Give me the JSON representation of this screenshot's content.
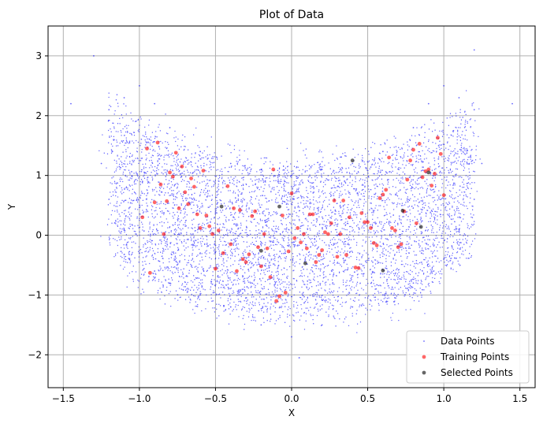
{
  "chart_data": {
    "type": "scatter",
    "title": "Plot of Data",
    "xlabel": "X",
    "ylabel": "Y",
    "xlim": [
      -1.6,
      1.6
    ],
    "ylim": [
      -2.55,
      3.5
    ],
    "xticks": [
      -1.5,
      -1.0,
      -0.5,
      0.0,
      0.5,
      1.0,
      1.5
    ],
    "xtick_labels": [
      "−1.5",
      "−1.0",
      "−0.5",
      "0.0",
      "0.5",
      "1.0",
      "1.5"
    ],
    "yticks": [
      -2,
      -1,
      0,
      1,
      2,
      3
    ],
    "ytick_labels": [
      "−2",
      "−1",
      "0",
      "1",
      "2",
      "3"
    ],
    "grid": true,
    "legend_position": "bottom-right",
    "colors": {
      "data_points": "#0000ff",
      "training_points": "#ff0000",
      "selected_points": "#000000",
      "grid": "#b0b0b0"
    },
    "series": [
      {
        "name": "Data Points",
        "style": "tiny dots",
        "description_of_cloud": {
          "x_range": [
            -1.3,
            1.3
          ],
          "note": "dense crescent-shaped cloud"
        },
        "points": [
          [
            -1.2,
            2.1
          ],
          [
            -1.1,
            2.3
          ],
          [
            -1.0,
            2.5
          ],
          [
            -0.9,
            2.2
          ],
          [
            -0.8,
            1.8
          ],
          [
            -1.25,
            1.2
          ],
          [
            -1.2,
            0.6
          ],
          [
            -1.1,
            0.1
          ],
          [
            -1.0,
            -0.3
          ],
          [
            -0.9,
            -0.6
          ],
          [
            -0.8,
            -0.8
          ],
          [
            -0.6,
            -1.0
          ],
          [
            -0.4,
            -1.2
          ],
          [
            -0.2,
            -1.5
          ],
          [
            0.0,
            -1.7
          ],
          [
            0.2,
            -1.5
          ],
          [
            0.4,
            -1.2
          ],
          [
            0.6,
            -1.0
          ],
          [
            0.8,
            -0.8
          ],
          [
            1.0,
            -0.4
          ],
          [
            1.1,
            0.1
          ],
          [
            1.2,
            0.6
          ],
          [
            1.25,
            1.2
          ],
          [
            1.2,
            2.1
          ],
          [
            1.1,
            2.3
          ],
          [
            1.0,
            2.5
          ],
          [
            0.9,
            2.2
          ],
          [
            0.8,
            1.8
          ],
          [
            0.6,
            1.4
          ],
          [
            0.4,
            1.2
          ],
          [
            0.2,
            1.1
          ],
          [
            0.0,
            1.0
          ],
          [
            -0.2,
            1.1
          ],
          [
            -0.4,
            1.2
          ],
          [
            -0.6,
            1.4
          ],
          [
            -1.3,
            3.0
          ],
          [
            1.2,
            3.1
          ],
          [
            -1.45,
            2.2
          ],
          [
            1.45,
            2.2
          ],
          [
            0.05,
            -2.05
          ]
        ]
      },
      {
        "name": "Training Points",
        "style": "red dots",
        "points": [
          [
            -0.98,
            0.3
          ],
          [
            -0.95,
            1.45
          ],
          [
            -0.93,
            -0.63
          ],
          [
            -0.9,
            0.55
          ],
          [
            -0.88,
            1.55
          ],
          [
            -0.86,
            0.85
          ],
          [
            -0.84,
            0.02
          ],
          [
            -0.82,
            0.57
          ],
          [
            -0.8,
            1.05
          ],
          [
            -0.78,
            0.98
          ],
          [
            -0.76,
            1.38
          ],
          [
            -0.74,
            0.45
          ],
          [
            -0.72,
            1.15
          ],
          [
            -0.7,
            0.72
          ],
          [
            -0.68,
            0.52
          ],
          [
            -0.66,
            0.95
          ],
          [
            -0.64,
            0.81
          ],
          [
            -0.62,
            0.35
          ],
          [
            -0.6,
            0.12
          ],
          [
            -0.58,
            1.08
          ],
          [
            -0.56,
            0.33
          ],
          [
            -0.54,
            0.15
          ],
          [
            -0.52,
            0.02
          ],
          [
            -0.5,
            -0.56
          ],
          [
            -0.48,
            0.08
          ],
          [
            -0.45,
            -0.3
          ],
          [
            -0.42,
            0.82
          ],
          [
            -0.4,
            -0.15
          ],
          [
            -0.38,
            0.45
          ],
          [
            -0.36,
            -0.6
          ],
          [
            -0.34,
            0.42
          ],
          [
            -0.32,
            -0.4
          ],
          [
            -0.3,
            -0.45
          ],
          [
            -0.28,
            -0.32
          ],
          [
            -0.26,
            0.32
          ],
          [
            -0.24,
            0.4
          ],
          [
            -0.22,
            -0.2
          ],
          [
            -0.2,
            -0.52
          ],
          [
            -0.18,
            0.02
          ],
          [
            -0.16,
            -0.22
          ],
          [
            -0.14,
            -0.7
          ],
          [
            -0.12,
            1.1
          ],
          [
            -0.1,
            -1.1
          ],
          [
            -0.08,
            -1.02
          ],
          [
            -0.06,
            0.33
          ],
          [
            -0.04,
            -0.96
          ],
          [
            -0.02,
            -0.27
          ],
          [
            0.0,
            0.7
          ],
          [
            0.02,
            -0.05
          ],
          [
            0.04,
            0.12
          ],
          [
            0.06,
            -0.12
          ],
          [
            0.08,
            0.02
          ],
          [
            0.1,
            -0.22
          ],
          [
            0.12,
            0.35
          ],
          [
            0.14,
            0.35
          ],
          [
            0.16,
            -0.45
          ],
          [
            0.18,
            -0.33
          ],
          [
            0.2,
            -0.25
          ],
          [
            0.22,
            0.05
          ],
          [
            0.24,
            0.02
          ],
          [
            0.26,
            0.2
          ],
          [
            0.28,
            0.58
          ],
          [
            0.3,
            -0.36
          ],
          [
            0.32,
            0.02
          ],
          [
            0.34,
            0.58
          ],
          [
            0.36,
            -0.33
          ],
          [
            0.38,
            0.3
          ],
          [
            0.42,
            -0.54
          ],
          [
            0.44,
            -0.55
          ],
          [
            0.46,
            0.37
          ],
          [
            0.48,
            0.22
          ],
          [
            0.5,
            0.22
          ],
          [
            0.52,
            0.12
          ],
          [
            0.54,
            -0.13
          ],
          [
            0.56,
            -0.17
          ],
          [
            0.58,
            0.62
          ],
          [
            0.6,
            0.68
          ],
          [
            0.62,
            0.76
          ],
          [
            0.64,
            1.3
          ],
          [
            0.66,
            0.12
          ],
          [
            0.68,
            0.08
          ],
          [
            0.7,
            -0.2
          ],
          [
            0.72,
            -0.15
          ],
          [
            0.74,
            0.4
          ],
          [
            0.76,
            0.93
          ],
          [
            0.78,
            1.25
          ],
          [
            0.8,
            1.43
          ],
          [
            0.82,
            0.2
          ],
          [
            0.84,
            1.53
          ],
          [
            0.86,
            0.97
          ],
          [
            0.88,
            1.07
          ],
          [
            0.9,
            1.1
          ],
          [
            0.92,
            0.83
          ],
          [
            0.94,
            1.03
          ],
          [
            0.96,
            1.63
          ],
          [
            0.98,
            1.36
          ],
          [
            1.0,
            0.67
          ]
        ]
      },
      {
        "name": "Selected Points",
        "style": "dark dots",
        "points": [
          [
            -0.46,
            0.48
          ],
          [
            -0.08,
            0.48
          ],
          [
            0.09,
            -0.47
          ],
          [
            0.4,
            1.25
          ],
          [
            0.6,
            -0.59
          ],
          [
            0.73,
            0.41
          ],
          [
            0.85,
            0.14
          ],
          [
            -0.2,
            -0.26
          ],
          [
            0.9,
            1.05
          ]
        ]
      }
    ]
  }
}
